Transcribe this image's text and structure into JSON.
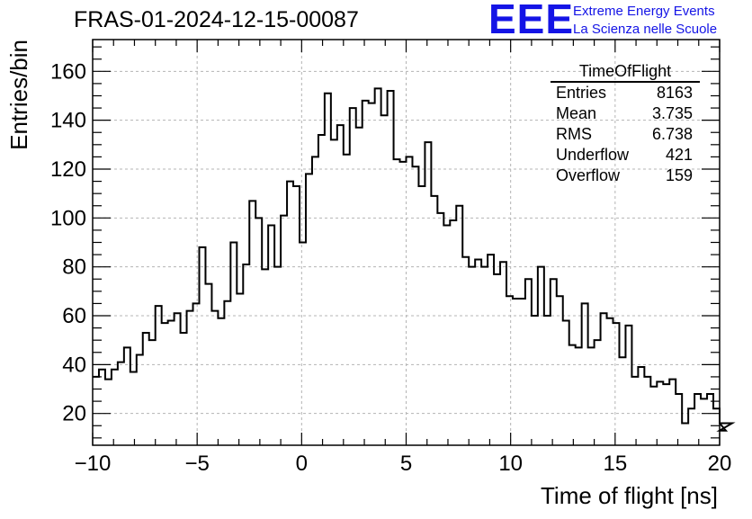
{
  "header": {
    "title": "FRAS-01-2024-12-15-00087",
    "logo_text": "EEE",
    "logo_line1": "Extreme Energy Events",
    "logo_line2": "La Scienza nelle Scuole",
    "logo_color": "#1414e6"
  },
  "stats": {
    "title": "TimeOfFlight",
    "rows": [
      {
        "label": "Entries",
        "value": "8163"
      },
      {
        "label": "Mean",
        "value": "3.735"
      },
      {
        "label": "RMS",
        "value": "6.738"
      },
      {
        "label": "Underflow",
        "value": "421"
      },
      {
        "label": "Overflow",
        "value": "159"
      }
    ]
  },
  "chart_data": {
    "type": "bar",
    "style": "step-histogram",
    "title": "FRAS-01-2024-12-15-00087",
    "xlabel": "Time of flight [ns]",
    "ylabel": "Entries/bin",
    "xlim": [
      -10,
      20
    ],
    "ylim": [
      7,
      173
    ],
    "bin_width": 0.3,
    "grid": true,
    "x_ticks": [
      "−10",
      "−5",
      "0",
      "5",
      "10",
      "15",
      "20"
    ],
    "x_tick_values": [
      -10,
      -5,
      0,
      5,
      10,
      15,
      20
    ],
    "y_ticks": [
      "20",
      "40",
      "60",
      "80",
      "100",
      "120",
      "140",
      "160"
    ],
    "y_tick_values": [
      20,
      40,
      60,
      80,
      100,
      120,
      140,
      160
    ],
    "values": [
      35,
      38,
      34,
      38,
      41,
      47,
      37,
      44,
      53,
      50,
      64,
      57,
      58,
      61,
      53,
      62,
      65,
      88,
      73,
      62,
      59,
      66,
      90,
      69,
      81,
      107,
      100,
      79,
      97,
      80,
      101,
      115,
      113,
      90,
      118,
      125,
      134,
      151,
      132,
      138,
      126,
      145,
      137,
      148,
      147,
      153,
      142,
      152,
      124,
      123,
      125,
      121,
      113,
      131,
      109,
      102,
      97,
      99,
      105,
      84,
      80,
      83,
      80,
      85,
      77,
      82,
      68,
      67,
      67,
      75,
      60,
      80,
      60,
      75,
      68,
      58,
      48,
      47,
      65,
      47,
      50,
      61,
      59,
      57,
      43,
      56,
      35,
      39,
      35,
      31,
      33,
      32,
      34,
      28,
      16,
      22,
      28,
      26,
      28,
      22,
      16,
      13,
      16
    ],
    "color": "#000000"
  }
}
